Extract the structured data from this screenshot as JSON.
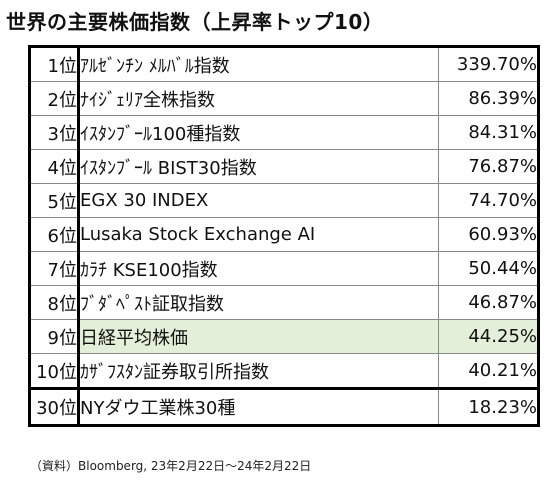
{
  "title": "世界の主要株価指数（上昇率トップ10）",
  "rows": [
    {
      "rank": "1位",
      "name": "ｱﾙｾﾞﾝﾁﾝ ﾒﾙﾊﾞﾙ指数",
      "value": "339.70%"
    },
    {
      "rank": "2位",
      "name": "ﾅｲｼﾞｪﾘｱ全株指数",
      "value": "86.39%"
    },
    {
      "rank": "3位",
      "name": "ｲｽﾀﾝﾌﾞｰﾙ100種指数",
      "value": "84.31%"
    },
    {
      "rank": "4位",
      "name": "ｲｽﾀﾝﾌﾞｰﾙ BIST30指数",
      "value": "76.87%"
    },
    {
      "rank": "5位",
      "name": "EGX 30 INDEX",
      "value": "74.70%"
    },
    {
      "rank": "6位",
      "name": "Lusaka Stock Exchange AI",
      "value": "60.93%"
    },
    {
      "rank": "7位",
      "name": "ｶﾗﾁ KSE100指数",
      "value": "50.44%"
    },
    {
      "rank": "8位",
      "name": "ﾌﾞﾀﾞﾍﾟｽﾄ証取指数",
      "value": "46.87%"
    },
    {
      "rank": "9位",
      "name": "日経平均株価",
      "value": "44.25%"
    },
    {
      "rank": "10位",
      "name": "ｶｻﾞﾌｽﾀﾝ証券取引所指数",
      "value": "40.21%"
    },
    {
      "rank": "30位",
      "name": "NYダウ工業株30種",
      "value": "18.23%"
    }
  ],
  "source": "（資料）Bloomberg, 23年2月22日～24年2月22日",
  "colors": {
    "highlight": "#e3efd9",
    "border": "#000000"
  }
}
